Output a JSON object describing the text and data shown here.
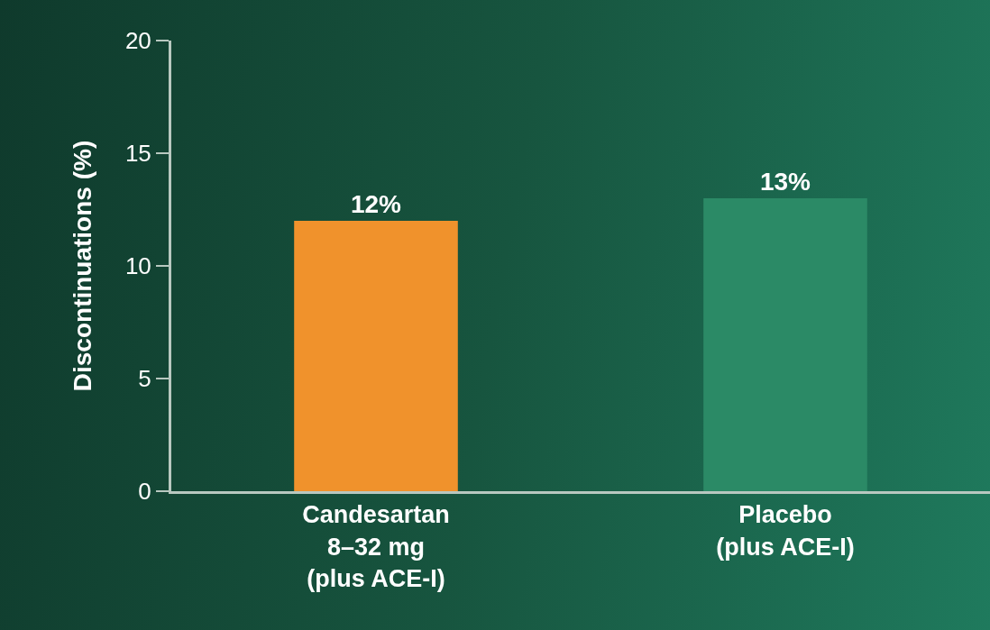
{
  "chart_data": {
    "type": "bar",
    "ylabel": "Discontinuations (%)",
    "categories": [
      "Candesartan\n8–32 mg\n(plus ACE-I)",
      "Placebo\n(plus ACE-I)"
    ],
    "values": [
      12,
      13
    ],
    "value_labels": [
      "12%",
      "13%"
    ],
    "colors": [
      "#f0922c",
      "#2b8a66"
    ],
    "ylim": [
      0,
      20
    ],
    "yticks": [
      0,
      5,
      10,
      15,
      20
    ],
    "grid": false
  }
}
